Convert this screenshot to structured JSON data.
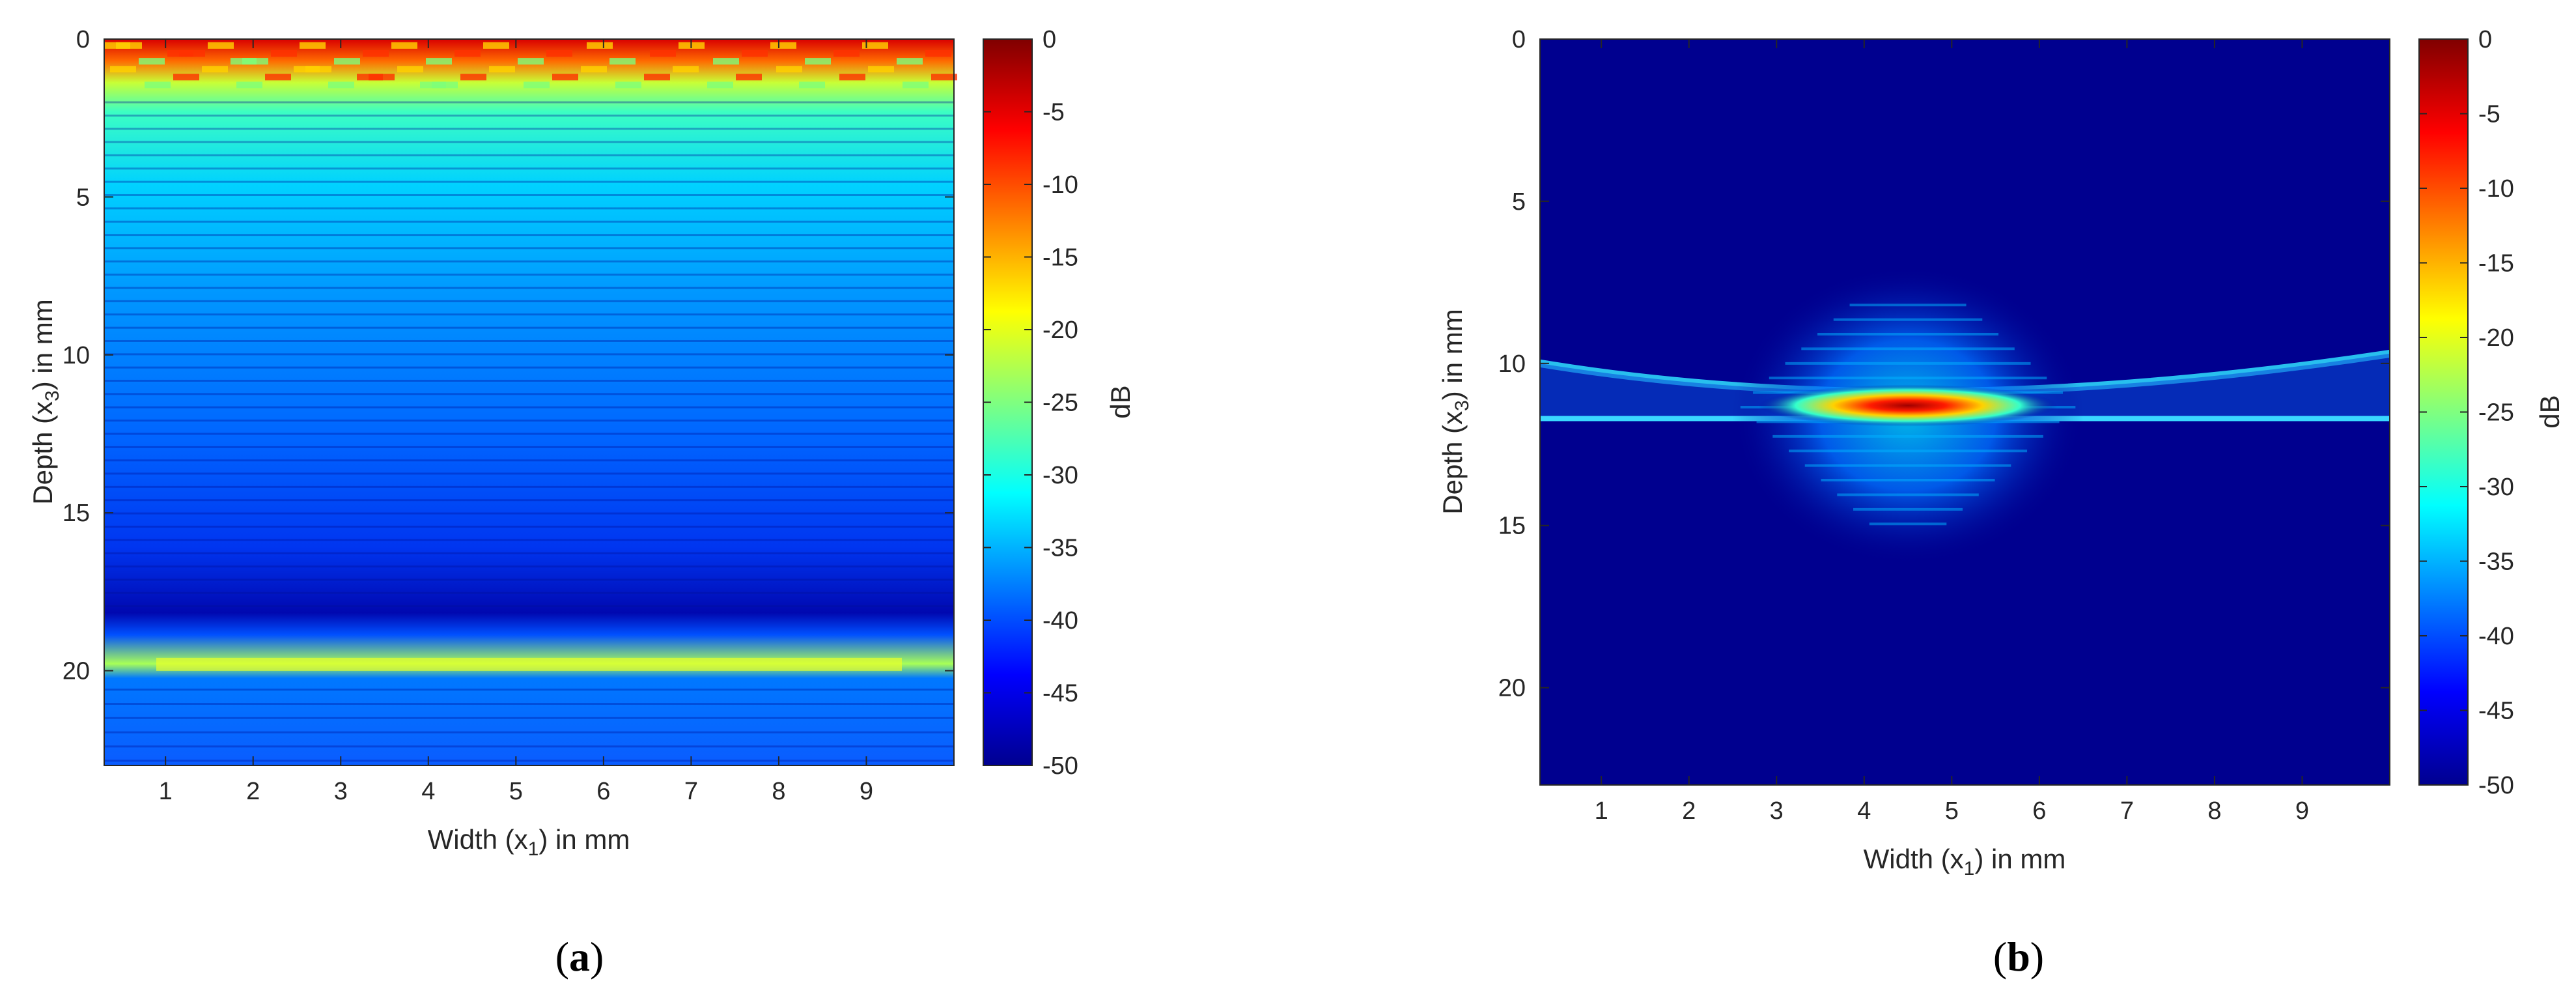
{
  "chart_data": [
    {
      "type": "heatmap",
      "caption_open": "(",
      "caption_letter": "a",
      "caption_close": ")",
      "xlabel_pre": "Width (x",
      "xlabel_sub": "1",
      "xlabel_post": ") in mm",
      "ylabel_pre": "Depth (x",
      "ylabel_sub": "3",
      "ylabel_post": ") in mm",
      "xlim": [
        0.3,
        10
      ],
      "ylim": [
        0,
        23
      ],
      "y_reversed": true,
      "xticks": [
        "1",
        "2",
        "3",
        "4",
        "5",
        "6",
        "7",
        "8",
        "9"
      ],
      "yticks": [
        "0",
        "5",
        "10",
        "15",
        "20"
      ],
      "colorbar": {
        "label": "dB",
        "range": [
          -50,
          0
        ],
        "ticks": [
          "0",
          "-5",
          "-10",
          "-15",
          "-20",
          "-25",
          "-30",
          "-35",
          "-40",
          "-45",
          "-50"
        ],
        "colormap": "jet"
      },
      "features": [
        {
          "description_kind": "near-surface high intensity band",
          "depth_range": [
            0,
            2
          ],
          "level_db": -8
        },
        {
          "description_kind": "horizontal striation pattern",
          "depth_range": [
            2,
            18
          ],
          "level_db_top": -30,
          "level_db_bottom": -46
        },
        {
          "description_kind": "back-wall echo",
          "depth": 19.8,
          "level_db": -22
        }
      ]
    },
    {
      "type": "heatmap",
      "caption_open": "(",
      "caption_letter": "b",
      "caption_close": ")",
      "xlabel_pre": "Width (x",
      "xlabel_sub": "1",
      "xlabel_post": ") in mm",
      "ylabel_pre": "Depth (x",
      "ylabel_sub": "3",
      "ylabel_post": ") in mm",
      "xlim": [
        0.3,
        10
      ],
      "ylim": [
        0,
        23
      ],
      "y_reversed": true,
      "xticks": [
        "1",
        "2",
        "3",
        "4",
        "5",
        "6",
        "7",
        "8",
        "9"
      ],
      "yticks": [
        "0",
        "5",
        "10",
        "15",
        "20"
      ],
      "colorbar": {
        "label": "dB",
        "range": [
          -50,
          0
        ],
        "ticks": [
          "0",
          "-5",
          "-10",
          "-15",
          "-20",
          "-25",
          "-30",
          "-35",
          "-40",
          "-45",
          "-50"
        ],
        "colormap": "jet"
      },
      "features": [
        {
          "description_kind": "focal spot",
          "x": 4.5,
          "depth": 11.3,
          "level_db": -5
        },
        {
          "description_kind": "curved reflector band",
          "x_range": [
            0.3,
            10
          ],
          "depth_center": 11.5,
          "depth_edge": 10.5,
          "level_db": -32
        },
        {
          "description_kind": "background",
          "level_db": -50
        }
      ]
    }
  ]
}
